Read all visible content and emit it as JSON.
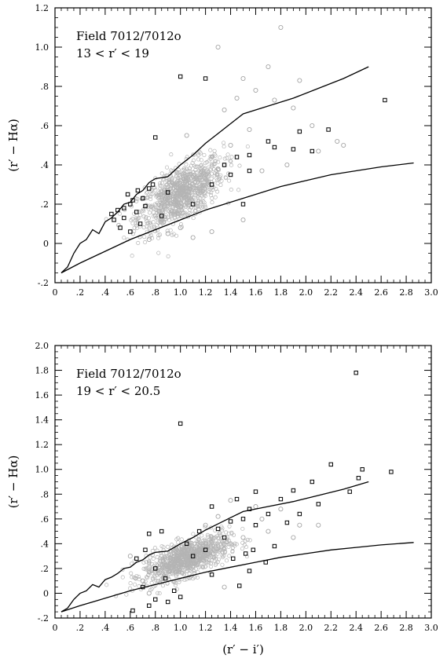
{
  "chart_data": [
    {
      "type": "scatter",
      "annotation": [
        "Field 7012/7012o",
        "13 < r′ < 19"
      ],
      "xlabel": "",
      "ylabel": "(r′ − Hα)",
      "xlim": [
        0,
        3.0
      ],
      "ylim": [
        -0.2,
        1.2
      ],
      "xticks": [
        0,
        0.2,
        0.4,
        0.6,
        0.8,
        1.0,
        1.2,
        1.4,
        1.6,
        1.8,
        2.0,
        2.2,
        2.4,
        2.6,
        2.8,
        3.0
      ],
      "xtick_labels": [
        "0",
        ".2",
        ".4",
        ".6",
        ".8",
        "1.0",
        "1.2",
        "1.4",
        "1.6",
        "1.8",
        "2.0",
        "2.2",
        "2.4",
        "2.6",
        "2.8",
        "3.0"
      ],
      "yticks": [
        -0.2,
        0,
        0.2,
        0.4,
        0.6,
        0.8,
        1.0,
        1.2
      ],
      "ytick_labels": [
        "-.2",
        "0",
        ".2",
        ".4",
        ".6",
        ".8",
        "1.0",
        "1.2"
      ],
      "grid": false,
      "lines": [
        {
          "style": "upper-track",
          "x": [
            0.05,
            0.1,
            0.15,
            0.2,
            0.25,
            0.3,
            0.35,
            0.4,
            0.45,
            0.5,
            0.55,
            0.6,
            0.65,
            0.7,
            0.75,
            0.8,
            0.9,
            1.0,
            1.1,
            1.2,
            1.3,
            1.4,
            1.5,
            1.7,
            1.9,
            2.1,
            2.3,
            2.5
          ],
          "y": [
            -0.15,
            -0.12,
            -0.05,
            0.0,
            0.02,
            0.07,
            0.05,
            0.11,
            0.13,
            0.16,
            0.2,
            0.21,
            0.25,
            0.27,
            0.31,
            0.33,
            0.34,
            0.4,
            0.45,
            0.51,
            0.56,
            0.61,
            0.66,
            0.7,
            0.74,
            0.79,
            0.84,
            0.9
          ]
        },
        {
          "style": "lower-track",
          "x": [
            0.05,
            0.2,
            0.4,
            0.6,
            0.8,
            1.0,
            1.2,
            1.4,
            1.6,
            1.8,
            2.0,
            2.2,
            2.4,
            2.6,
            2.86
          ],
          "y": [
            -0.15,
            -0.1,
            -0.04,
            0.02,
            0.07,
            0.12,
            0.17,
            0.21,
            0.25,
            0.29,
            0.32,
            0.35,
            0.37,
            0.39,
            0.41
          ]
        }
      ],
      "series": [
        {
          "marker": "grey-circle",
          "cloud_center": [
            1.0,
            0.25
          ],
          "points": [
            [
              1.8,
              1.1
            ],
            [
              1.3,
              1.0
            ],
            [
              1.7,
              0.9
            ],
            [
              1.5,
              0.84
            ],
            [
              1.95,
              0.83
            ],
            [
              1.6,
              0.78
            ],
            [
              1.45,
              0.74
            ],
            [
              1.75,
              0.73
            ],
            [
              1.9,
              0.69
            ],
            [
              1.35,
              0.68
            ],
            [
              2.05,
              0.6
            ],
            [
              1.55,
              0.58
            ],
            [
              2.25,
              0.52
            ],
            [
              1.05,
              0.55
            ],
            [
              1.4,
              0.5
            ],
            [
              2.1,
              0.47
            ],
            [
              1.85,
              0.4
            ],
            [
              1.65,
              0.37
            ],
            [
              2.3,
              0.5
            ],
            [
              1.3,
              0.38
            ],
            [
              0.9,
              0.05
            ],
            [
              1.1,
              0.03
            ],
            [
              0.75,
              0.02
            ],
            [
              1.25,
              0.06
            ],
            [
              1.5,
              0.12
            ],
            [
              1.0,
              0.08
            ]
          ]
        },
        {
          "marker": "black-square",
          "points": [
            [
              1.0,
              0.85
            ],
            [
              1.2,
              0.84
            ],
            [
              2.63,
              0.73
            ],
            [
              0.8,
              0.54
            ],
            [
              2.18,
              0.58
            ],
            [
              1.95,
              0.57
            ],
            [
              1.7,
              0.52
            ],
            [
              1.75,
              0.49
            ],
            [
              1.9,
              0.48
            ],
            [
              2.05,
              0.47
            ],
            [
              1.45,
              0.44
            ],
            [
              1.55,
              0.45
            ],
            [
              1.35,
              0.4
            ],
            [
              0.6,
              0.2
            ],
            [
              0.55,
              0.18
            ],
            [
              0.62,
              0.22
            ],
            [
              0.65,
              0.16
            ],
            [
              0.58,
              0.25
            ],
            [
              0.5,
              0.17
            ],
            [
              0.45,
              0.15
            ],
            [
              0.7,
              0.23
            ],
            [
              0.68,
              0.1
            ],
            [
              0.52,
              0.08
            ],
            [
              0.6,
              0.06
            ],
            [
              0.72,
              0.19
            ],
            [
              0.75,
              0.28
            ],
            [
              0.66,
              0.27
            ],
            [
              0.78,
              0.3
            ],
            [
              0.47,
              0.12
            ],
            [
              0.55,
              0.13
            ],
            [
              1.25,
              0.3
            ],
            [
              1.1,
              0.2
            ],
            [
              1.5,
              0.2
            ],
            [
              1.55,
              0.37
            ],
            [
              1.4,
              0.35
            ],
            [
              0.9,
              0.26
            ],
            [
              0.85,
              0.14
            ]
          ]
        }
      ]
    },
    {
      "type": "scatter",
      "annotation": [
        "Field 7012/7012o",
        "19 < r′ < 20.5"
      ],
      "xlabel": "(r′ − i′)",
      "ylabel": "(r′ − Hα)",
      "xlim": [
        0,
        3.0
      ],
      "ylim": [
        -0.2,
        2.0
      ],
      "xticks": [
        0,
        0.2,
        0.4,
        0.6,
        0.8,
        1.0,
        1.2,
        1.4,
        1.6,
        1.8,
        2.0,
        2.2,
        2.4,
        2.6,
        2.8,
        3.0
      ],
      "xtick_labels": [
        "0",
        ".2",
        ".4",
        ".6",
        ".8",
        "1.0",
        "1.2",
        "1.4",
        "1.6",
        "1.8",
        "2.0",
        "2.2",
        "2.4",
        "2.6",
        "2.8",
        "3.0"
      ],
      "yticks": [
        -0.2,
        0,
        0.2,
        0.4,
        0.6,
        0.8,
        1.0,
        1.2,
        1.4,
        1.6,
        1.8,
        2.0
      ],
      "ytick_labels": [
        "-.2",
        "0",
        ".2",
        ".4",
        ".6",
        ".8",
        "1.0",
        "1.2",
        "1.4",
        "1.6",
        "1.8",
        "2.0"
      ],
      "grid": false,
      "lines": [
        {
          "style": "upper-track",
          "x": [
            0.05,
            0.1,
            0.15,
            0.2,
            0.25,
            0.3,
            0.35,
            0.4,
            0.45,
            0.5,
            0.55,
            0.6,
            0.65,
            0.7,
            0.75,
            0.8,
            0.9,
            1.0,
            1.1,
            1.2,
            1.3,
            1.4,
            1.5,
            1.7,
            1.9,
            2.1,
            2.3,
            2.5
          ],
          "y": [
            -0.15,
            -0.12,
            -0.05,
            0.0,
            0.02,
            0.07,
            0.05,
            0.11,
            0.13,
            0.16,
            0.2,
            0.21,
            0.25,
            0.27,
            0.31,
            0.33,
            0.34,
            0.4,
            0.45,
            0.51,
            0.56,
            0.61,
            0.66,
            0.7,
            0.74,
            0.79,
            0.84,
            0.9
          ]
        },
        {
          "style": "lower-track",
          "x": [
            0.05,
            0.2,
            0.4,
            0.6,
            0.8,
            1.0,
            1.2,
            1.4,
            1.6,
            1.8,
            2.0,
            2.2,
            2.4,
            2.6,
            2.86
          ],
          "y": [
            -0.15,
            -0.1,
            -0.04,
            0.02,
            0.07,
            0.12,
            0.17,
            0.21,
            0.25,
            0.29,
            0.32,
            0.35,
            0.37,
            0.39,
            0.41
          ]
        }
      ],
      "series": [
        {
          "marker": "grey-circle",
          "cloud_center": [
            1.05,
            0.28
          ],
          "points": [
            [
              1.4,
              0.75
            ],
            [
              1.6,
              0.7
            ],
            [
              1.8,
              0.68
            ],
            [
              1.3,
              0.62
            ],
            [
              1.95,
              0.55
            ],
            [
              1.7,
              0.5
            ],
            [
              1.5,
              0.45
            ],
            [
              0.6,
              0.3
            ],
            [
              2.1,
              0.55
            ],
            [
              1.2,
              0.55
            ],
            [
              1.9,
              0.45
            ],
            [
              1.65,
              0.6
            ],
            [
              0.7,
              0.1
            ],
            [
              0.75,
              0.0
            ],
            [
              1.35,
              0.05
            ]
          ]
        },
        {
          "marker": "black-square",
          "points": [
            [
              2.4,
              1.78
            ],
            [
              1.0,
              1.37
            ],
            [
              2.2,
              1.04
            ],
            [
              2.45,
              1.0
            ],
            [
              2.68,
              0.98
            ],
            [
              2.42,
              0.93
            ],
            [
              2.05,
              0.9
            ],
            [
              1.9,
              0.83
            ],
            [
              1.6,
              0.82
            ],
            [
              2.35,
              0.82
            ],
            [
              1.45,
              0.76
            ],
            [
              1.8,
              0.76
            ],
            [
              1.25,
              0.7
            ],
            [
              1.55,
              0.68
            ],
            [
              2.1,
              0.72
            ],
            [
              1.95,
              0.64
            ],
            [
              1.7,
              0.64
            ],
            [
              1.4,
              0.58
            ],
            [
              1.3,
              0.52
            ],
            [
              1.6,
              0.55
            ],
            [
              1.85,
              0.57
            ],
            [
              1.5,
              0.6
            ],
            [
              1.15,
              0.5
            ],
            [
              1.35,
              0.45
            ],
            [
              0.75,
              0.48
            ],
            [
              0.85,
              0.5
            ],
            [
              1.75,
              0.38
            ],
            [
              1.58,
              0.35
            ],
            [
              1.42,
              0.28
            ],
            [
              1.55,
              0.18
            ],
            [
              1.68,
              0.25
            ],
            [
              0.8,
              0.2
            ],
            [
              0.65,
              0.28
            ],
            [
              0.7,
              0.05
            ],
            [
              0.8,
              -0.05
            ],
            [
              0.9,
              -0.07
            ],
            [
              1.0,
              -0.03
            ],
            [
              0.62,
              -0.14
            ],
            [
              0.75,
              -0.1
            ],
            [
              0.95,
              0.02
            ],
            [
              1.1,
              0.3
            ],
            [
              1.2,
              0.35
            ],
            [
              1.05,
              0.4
            ],
            [
              1.25,
              0.15
            ],
            [
              0.88,
              0.12
            ],
            [
              1.47,
              0.06
            ],
            [
              1.52,
              0.32
            ],
            [
              0.72,
              0.35
            ]
          ]
        }
      ]
    }
  ]
}
